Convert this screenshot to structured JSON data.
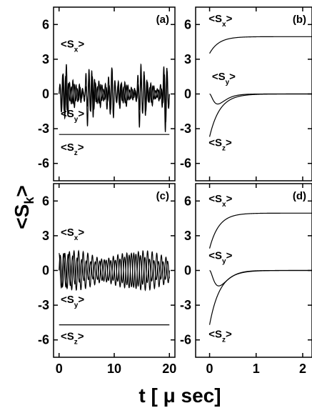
{
  "ylabel": {
    "main": "<S",
    "sub": "k",
    "close": ">"
  },
  "xlabel": "t [ μ sec]",
  "chart_data": [
    {
      "panel": "(a)",
      "type": "line",
      "xlim": [
        -1,
        21
      ],
      "ylim": [
        -7.5,
        7.5
      ],
      "xticks": [
        "0",
        "10",
        "20"
      ],
      "show_xticks": false,
      "yticks": [
        "6",
        "3",
        "0",
        "-3",
        "-6"
      ],
      "show_yticks": true,
      "annotations": [
        {
          "main": "<S",
          "sub": "x",
          "close": ">",
          "x": 0.3,
          "y": 4.0
        },
        {
          "main": "<S",
          "sub": "y",
          "close": ">",
          "x": 0.3,
          "y": -2.0
        },
        {
          "main": "<S",
          "sub": "z",
          "close": ">",
          "x": 0.3,
          "y": -4.9
        }
      ],
      "series": [
        {
          "kind": "noisy_osc",
          "x0": 0,
          "x1": 20,
          "center": 0,
          "amp_base": 1.3,
          "amp_burst": 2.2,
          "freq": 1.7,
          "burst_centers": [
            1.0,
            5.3,
            9.3,
            14.8,
            19.2
          ]
        },
        {
          "kind": "noisy_osc",
          "x0": 0,
          "x1": 20,
          "center": 0,
          "amp_base": 0.9,
          "amp_burst": 1.8,
          "freq": 1.9,
          "burst_centers": [
            0.8,
            5.8,
            9.6,
            15.2,
            19.5
          ]
        },
        {
          "kind": "flat",
          "x0": 0,
          "x1": 20,
          "value": -3.5
        }
      ]
    },
    {
      "panel": "(b)",
      "type": "line",
      "xlim": [
        -0.3,
        2.2
      ],
      "ylim": [
        -7.5,
        7.5
      ],
      "xticks": [
        "0",
        "1",
        "2"
      ],
      "show_xticks": false,
      "yticks": [
        "6",
        "3",
        "0",
        "-3",
        "-6"
      ],
      "show_yticks": true,
      "annotations": [
        {
          "main": "<S",
          "sub": "x",
          "close": ">",
          "x": -0.02,
          "y": 6.2
        },
        {
          "main": "<S",
          "sub": "y",
          "close": ">",
          "x": 0.05,
          "y": 1.2
        },
        {
          "main": "<S",
          "sub": "z",
          "close": ">",
          "x": -0.02,
          "y": -4.5
        }
      ],
      "series": [
        {
          "kind": "exp_rise",
          "x0": 0,
          "x1": 2.2,
          "start": 3.5,
          "end": 4.95,
          "tau": 0.2
        },
        {
          "kind": "dip",
          "x0": 0,
          "x1": 2.2,
          "depth": 1.25,
          "tau": 0.12
        },
        {
          "kind": "exp_rise",
          "x0": 0,
          "x1": 2.2,
          "start": -3.7,
          "end": 0,
          "tau": 0.22
        }
      ]
    },
    {
      "panel": "(c)",
      "type": "line",
      "xlim": [
        -1,
        21
      ],
      "ylim": [
        -7.5,
        7.5
      ],
      "xticks": [
        "0",
        "10",
        "20"
      ],
      "show_xticks": true,
      "yticks": [
        "6",
        "3",
        "0",
        "-3",
        "-6"
      ],
      "show_yticks": true,
      "annotations": [
        {
          "main": "<S",
          "sub": "x",
          "close": ">",
          "x": 0.3,
          "y": 3.0
        },
        {
          "main": "<S",
          "sub": "y",
          "close": ">",
          "x": 0.3,
          "y": -2.8
        },
        {
          "main": "<S",
          "sub": "z",
          "close": ">",
          "x": 0.3,
          "y": -6.0
        }
      ],
      "series": [
        {
          "kind": "beat",
          "x0": 0,
          "x1": 20,
          "center": 0,
          "amp": 1.7,
          "freq": 1.2,
          "phase": 0.0
        },
        {
          "kind": "beat",
          "x0": 0,
          "x1": 20,
          "center": 0,
          "amp": 1.5,
          "freq": 1.22,
          "phase": 1.6
        },
        {
          "kind": "flat",
          "x0": 0,
          "x1": 20,
          "value": -4.7
        }
      ]
    },
    {
      "panel": "(d)",
      "type": "line",
      "xlim": [
        -0.3,
        2.2
      ],
      "ylim": [
        -7.5,
        7.5
      ],
      "xticks": [
        "0",
        "1",
        "2"
      ],
      "show_xticks": true,
      "yticks": [
        "6",
        "3",
        "0",
        "-3",
        "-6"
      ],
      "show_yticks": true,
      "annotations": [
        {
          "main": "<S",
          "sub": "x",
          "close": ">",
          "x": -0.02,
          "y": 5.9
        },
        {
          "main": "<S",
          "sub": "y",
          "close": ">",
          "x": -0.02,
          "y": 1.0
        },
        {
          "main": "<S",
          "sub": "z",
          "close": ">",
          "x": -0.02,
          "y": -5.8
        }
      ],
      "series": [
        {
          "kind": "exp_rise",
          "x0": 0,
          "x1": 2.2,
          "start": 1.9,
          "end": 4.95,
          "tau": 0.2
        },
        {
          "kind": "dip",
          "x0": 0,
          "x1": 2.2,
          "depth": 1.8,
          "tau": 0.14
        },
        {
          "kind": "exp_rise",
          "x0": 0,
          "x1": 2.2,
          "start": -4.7,
          "end": 0,
          "tau": 0.22
        }
      ]
    }
  ]
}
